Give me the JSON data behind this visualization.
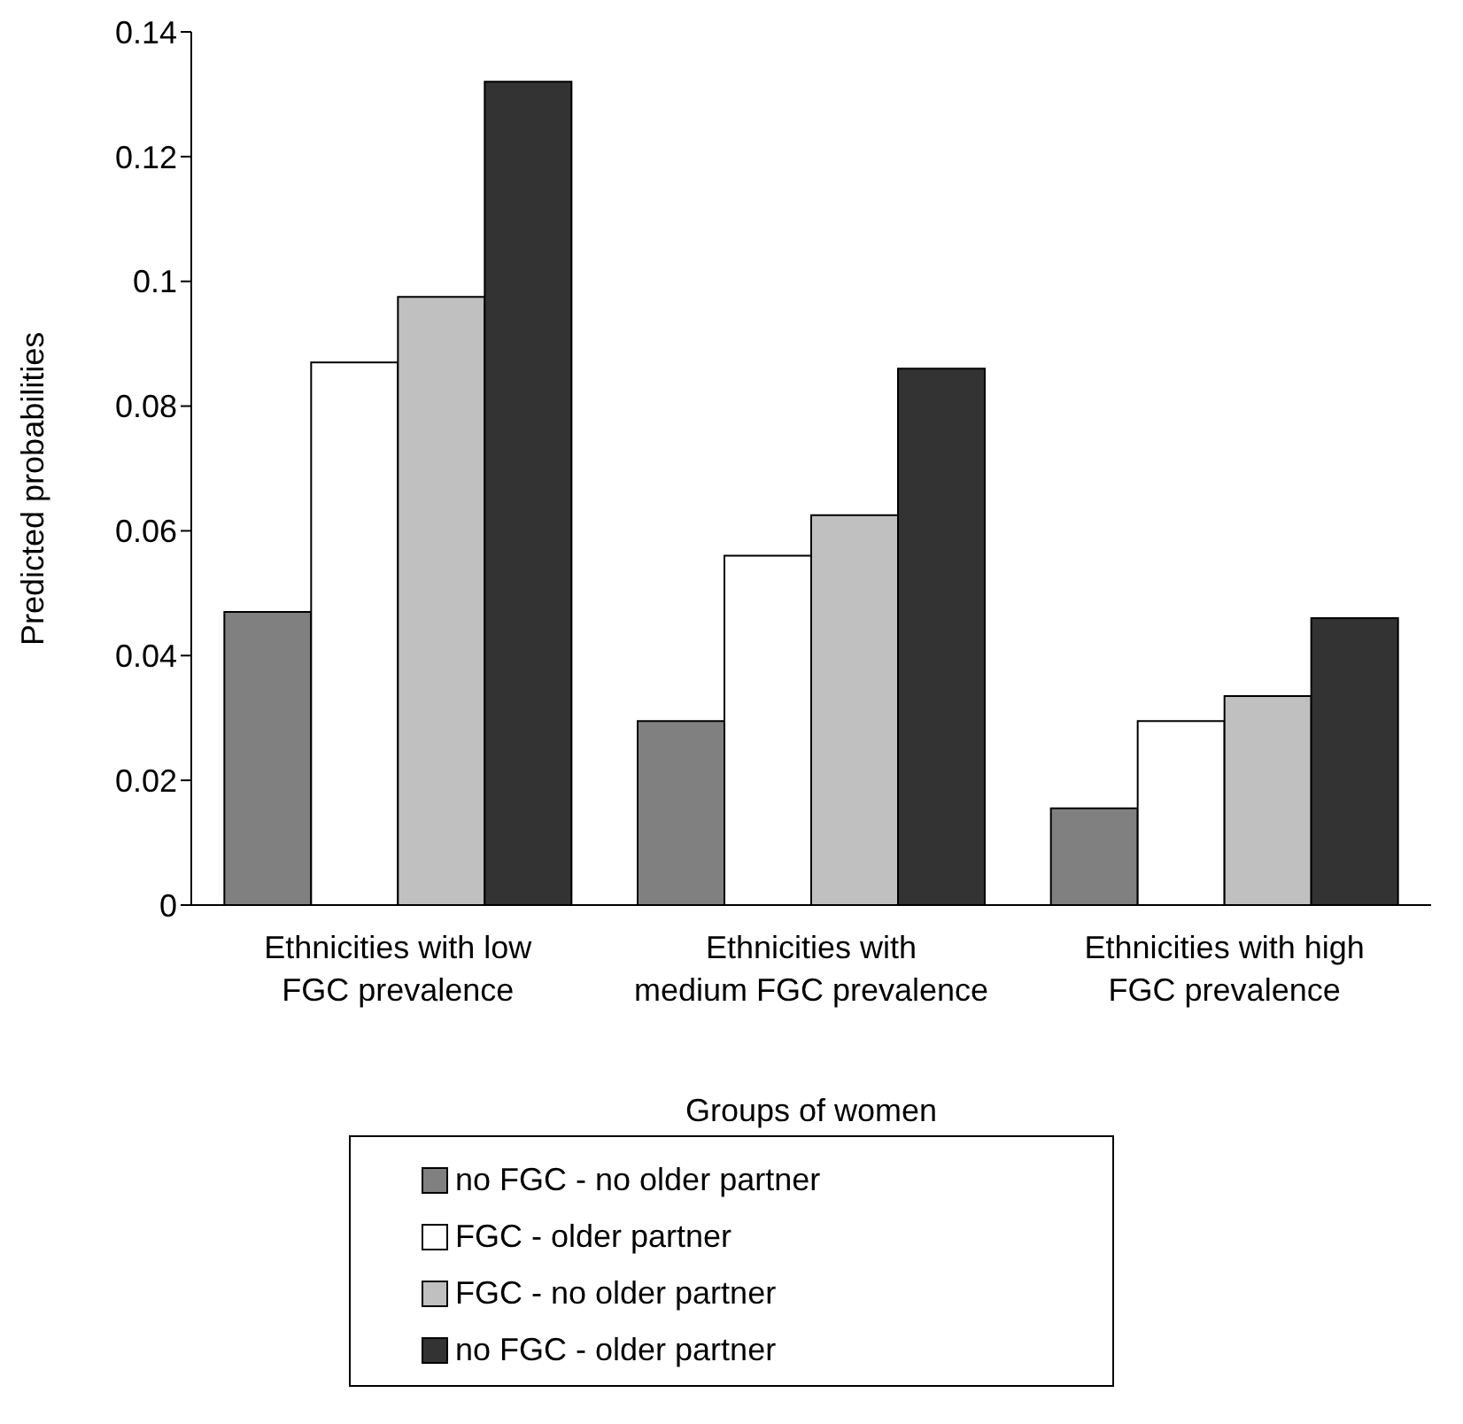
{
  "chart_data": {
    "type": "bar",
    "xlabel": "Groups of women",
    "ylabel": "Predicted probabilities",
    "categories": [
      "Ethnicities with low FGC prevalence",
      "Ethnicities with medium FGC prevalence",
      "Ethnicities with high FGC prevalence"
    ],
    "series": [
      {
        "name": "no FGC - no older partner",
        "color": "#808080",
        "values": [
          0.047,
          0.0295,
          0.0155
        ]
      },
      {
        "name": "FGC - older partner",
        "color": "#ffffff",
        "values": [
          0.087,
          0.056,
          0.0295
        ]
      },
      {
        "name": "FGC - no older partner",
        "color": "#c0c0c0",
        "values": [
          0.0975,
          0.0625,
          0.0335
        ]
      },
      {
        "name": "no FGC - older partner",
        "color": "#333333",
        "values": [
          0.132,
          0.086,
          0.046
        ]
      }
    ],
    "ylim": [
      0,
      0.14
    ],
    "yticks": [
      0,
      0.02,
      0.04,
      0.06,
      0.08,
      0.1,
      0.12,
      0.14
    ],
    "grid": false,
    "legend": "bottom"
  }
}
